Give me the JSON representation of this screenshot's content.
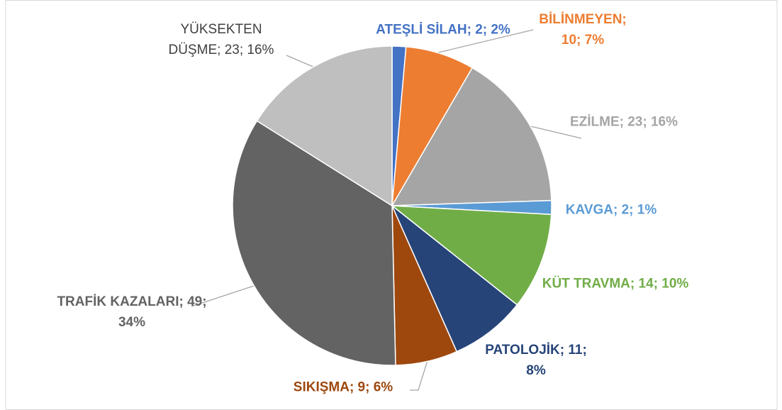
{
  "chart_data": {
    "type": "pie",
    "categories": [
      "ATEŞLİ SİLAH",
      "BİLİNMEYEN",
      "EZİLME",
      "KAVGA",
      "KÜT TRAVMA",
      "PATOLOJİK",
      "SIKIŞMA",
      "TRAFİK KAZALARI",
      "YÜKSEKTEN DÜŞME"
    ],
    "values": [
      2,
      10,
      23,
      2,
      14,
      11,
      9,
      49,
      23
    ],
    "value_labels": [
      "ATEŞLİ SİLAH; 2; 2%",
      "BİLİNMEYEN; 10; 7%",
      "EZİLME; 23; 16%",
      "KAVGA; 2; 1%",
      "KÜT TRAVMA; 14; 10%",
      "PATOLOJİK; 11; 8%",
      "SIKIŞMA; 9; 6%",
      "TRAFİK KAZALARI; 49; 34%",
      "YÜKSEKTEN DÜŞME; 23; 16%"
    ],
    "colors": [
      "#4472c4",
      "#ed7d31",
      "#a5a5a5",
      "#5b9bd5",
      "#70ad47",
      "#264478",
      "#9e480e",
      "#636363",
      "#bfbfbf"
    ],
    "label_colors": [
      "#4472c4",
      "#ed7d31",
      "#a5a5a5",
      "#5b9bd5",
      "#70ad47",
      "#264478",
      "#9e480e",
      "#636363",
      "#404040"
    ]
  }
}
